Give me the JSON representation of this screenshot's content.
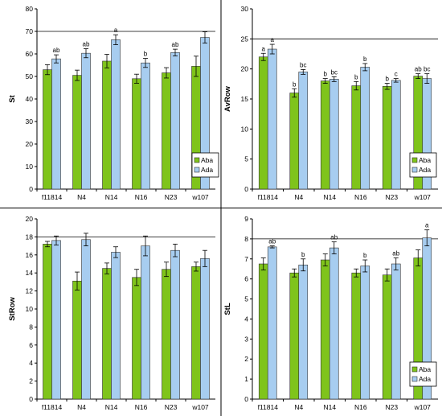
{
  "colors": {
    "aba": "#7fc41b",
    "ada": "#a7cdf0",
    "bar_edge": "#333333",
    "grid": "#000000"
  },
  "chart_data": [
    {
      "type": "bar",
      "ylabel": "St",
      "ylim": [
        0,
        80
      ],
      "yticks": [
        0,
        10,
        20,
        30,
        40,
        50,
        60,
        70,
        80
      ],
      "gridlines": [
        70
      ],
      "legend_placement": "bottom-right",
      "categories": [
        "f11814",
        "N4",
        "N14",
        "N16",
        "N23",
        "w107"
      ],
      "series": [
        {
          "name": "Aba",
          "values": [
            53,
            50.5,
            56.8,
            49,
            51.6,
            54.5
          ],
          "errors": [
            2.2,
            2.3,
            3,
            2,
            2.3,
            4.5
          ],
          "letters": [
            "",
            "",
            "",
            "",
            "",
            ""
          ]
        },
        {
          "name": "Ada",
          "values": [
            57.8,
            60.3,
            66.3,
            56,
            60.6,
            67.3
          ],
          "errors": [
            1.8,
            2,
            2.2,
            2,
            1.5,
            2.5
          ],
          "letters": [
            "ab",
            "ab",
            "a",
            "b",
            "ab",
            ""
          ]
        }
      ]
    },
    {
      "type": "bar",
      "ylabel": "AvRow",
      "ylim": [
        0,
        30
      ],
      "yticks": [
        0,
        5,
        10,
        15,
        20,
        25,
        30
      ],
      "gridlines": [
        25
      ],
      "legend_placement": "bottom-right",
      "categories": [
        "f11814",
        "N4",
        "N14",
        "N16",
        "N23",
        "w107"
      ],
      "series": [
        {
          "name": "Aba",
          "values": [
            22,
            16,
            18,
            17.2,
            17.1,
            18.8
          ],
          "errors": [
            0.6,
            0.7,
            0.4,
            0.7,
            0.5,
            0.4
          ],
          "letters": [
            "a",
            "b",
            "b",
            "b",
            "b",
            "ab"
          ]
        },
        {
          "name": "Ada",
          "values": [
            23.3,
            19.5,
            18.3,
            20.3,
            18.1,
            18.4
          ],
          "errors": [
            0.8,
            0.4,
            0.4,
            0.6,
            0.3,
            0.8
          ],
          "letters": [
            "a",
            "bc",
            "bc",
            "b",
            "c",
            "bc"
          ]
        }
      ]
    },
    {
      "type": "bar",
      "ylabel": "StRow",
      "ylim": [
        0,
        20
      ],
      "yticks": [
        0,
        2,
        4,
        6,
        8,
        10,
        12,
        14,
        16,
        18,
        20
      ],
      "gridlines": [
        18
      ],
      "legend_placement": "bottom-right",
      "categories": [
        "f11814",
        "N4",
        "N14",
        "N16",
        "N23",
        "w107"
      ],
      "series": [
        {
          "name": "Aba",
          "values": [
            17.2,
            13.1,
            14.5,
            13.5,
            14.4,
            14.7
          ],
          "errors": [
            0.3,
            1,
            0.6,
            0.9,
            0.8,
            0.5
          ],
          "letters": [
            "",
            "",
            "",
            "",
            "",
            ""
          ]
        },
        {
          "name": "Ada",
          "values": [
            17.6,
            17.7,
            16.3,
            17,
            16.5,
            15.6
          ],
          "errors": [
            0.5,
            0.7,
            0.6,
            1.1,
            0.7,
            0.9
          ],
          "letters": [
            "",
            "",
            "",
            "",
            "",
            ""
          ]
        }
      ]
    },
    {
      "type": "bar",
      "ylabel": "StL",
      "ylim": [
        0,
        9
      ],
      "yticks": [
        0,
        1,
        2,
        3,
        4,
        5,
        6,
        7,
        8,
        9
      ],
      "gridlines": [
        8
      ],
      "legend_placement": "bottom-right",
      "categories": [
        "f11814",
        "N4",
        "N14",
        "N16",
        "N23",
        "w107"
      ],
      "series": [
        {
          "name": "Aba",
          "values": [
            6.75,
            6.3,
            6.95,
            6.3,
            6.2,
            7.05
          ],
          "errors": [
            0.3,
            0.2,
            0.3,
            0.2,
            0.3,
            0.4
          ],
          "letters": [
            "",
            "",
            "",
            "",
            "",
            ""
          ]
        },
        {
          "name": "Ada",
          "values": [
            7.6,
            6.7,
            7.55,
            6.65,
            6.75,
            8.05
          ],
          "errors": [
            0.05,
            0.3,
            0.3,
            0.3,
            0.3,
            0.4
          ],
          "letters": [
            "ab",
            "b",
            "ab",
            "b",
            "ab",
            "a"
          ]
        }
      ]
    }
  ]
}
